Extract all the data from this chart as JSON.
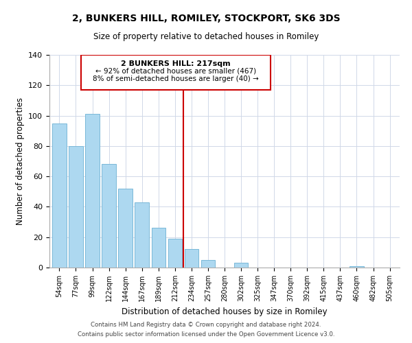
{
  "title": "2, BUNKERS HILL, ROMILEY, STOCKPORT, SK6 3DS",
  "subtitle": "Size of property relative to detached houses in Romiley",
  "xlabel": "Distribution of detached houses by size in Romiley",
  "ylabel": "Number of detached properties",
  "bar_labels": [
    "54sqm",
    "77sqm",
    "99sqm",
    "122sqm",
    "144sqm",
    "167sqm",
    "189sqm",
    "212sqm",
    "234sqm",
    "257sqm",
    "280sqm",
    "302sqm",
    "325sqm",
    "347sqm",
    "370sqm",
    "392sqm",
    "415sqm",
    "437sqm",
    "460sqm",
    "482sqm",
    "505sqm"
  ],
  "bar_values": [
    95,
    80,
    101,
    68,
    52,
    43,
    26,
    19,
    12,
    5,
    0,
    3,
    0,
    0,
    0,
    0,
    0,
    0,
    1,
    0,
    0
  ],
  "bar_color": "#add8f0",
  "bar_edge_color": "#7ab8d8",
  "vline_x": 7.5,
  "vline_color": "#cc0000",
  "annotation_title": "2 BUNKERS HILL: 217sqm",
  "annotation_line1": "← 92% of detached houses are smaller (467)",
  "annotation_line2": "8% of semi-detached houses are larger (40) →",
  "annotation_box_color": "#cc0000",
  "ylim": [
    0,
    140
  ],
  "yticks": [
    0,
    20,
    40,
    60,
    80,
    100,
    120,
    140
  ],
  "footer1": "Contains HM Land Registry data © Crown copyright and database right 2024.",
  "footer2": "Contains public sector information licensed under the Open Government Licence v3.0."
}
